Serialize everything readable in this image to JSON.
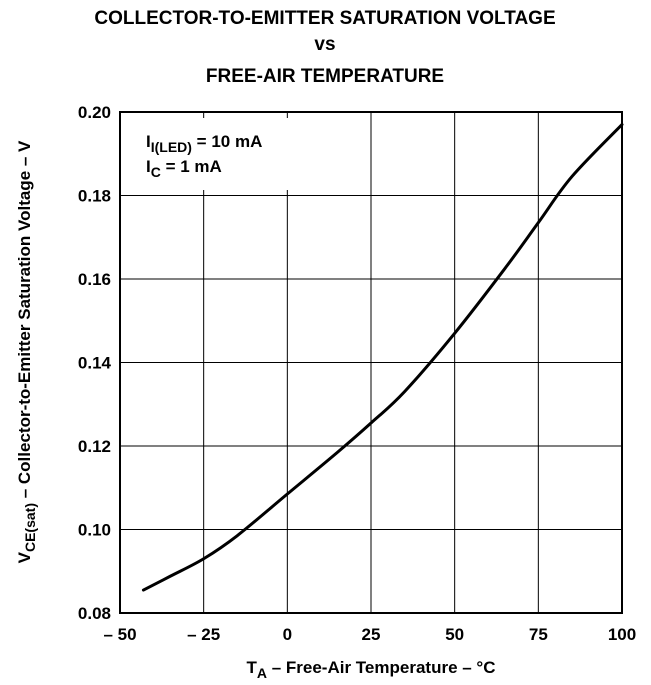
{
  "chart_data": {
    "type": "line",
    "title_lines": [
      "COLLECTOR-TO-EMITTER SATURATION VOLTAGE",
      "vs",
      "FREE-AIR TEMPERATURE"
    ],
    "xlabel": {
      "main": "T",
      "sub": "A",
      "rest": " – Free-Air Temperature – °C"
    },
    "ylabel": {
      "main": "V",
      "sub": "CE(sat)",
      "rest": " – Collector-to-Emitter Saturation Voltage – V"
    },
    "xlim": [
      -50,
      100
    ],
    "ylim": [
      0.08,
      0.2
    ],
    "x_ticks": [
      -50,
      -25,
      0,
      25,
      50,
      75,
      100
    ],
    "x_tick_labels": [
      "– 50",
      "– 25",
      "0",
      "25",
      "50",
      "75",
      "100"
    ],
    "y_ticks": [
      0.08,
      0.1,
      0.12,
      0.14,
      0.16,
      0.18,
      0.2
    ],
    "y_tick_labels": [
      "0.08",
      "0.10",
      "0.12",
      "0.14",
      "0.16",
      "0.18",
      "0.20"
    ],
    "grid": true,
    "annotations": [
      {
        "main": "I",
        "sub": "I(LED)",
        "rest": " = 10 mA"
      },
      {
        "main": "I",
        "sub": "C",
        "rest": " = 1 mA"
      }
    ],
    "series": [
      {
        "x": [
          -43,
          -35,
          -25,
          -15,
          0,
          15,
          25,
          35,
          50,
          65,
          75,
          85,
          100
        ],
        "y": [
          0.0855,
          0.0888,
          0.093,
          0.0985,
          0.1085,
          0.1185,
          0.1255,
          0.133,
          0.147,
          0.1625,
          0.1735,
          0.1845,
          0.197
        ]
      }
    ],
    "line_color": "#000000"
  }
}
